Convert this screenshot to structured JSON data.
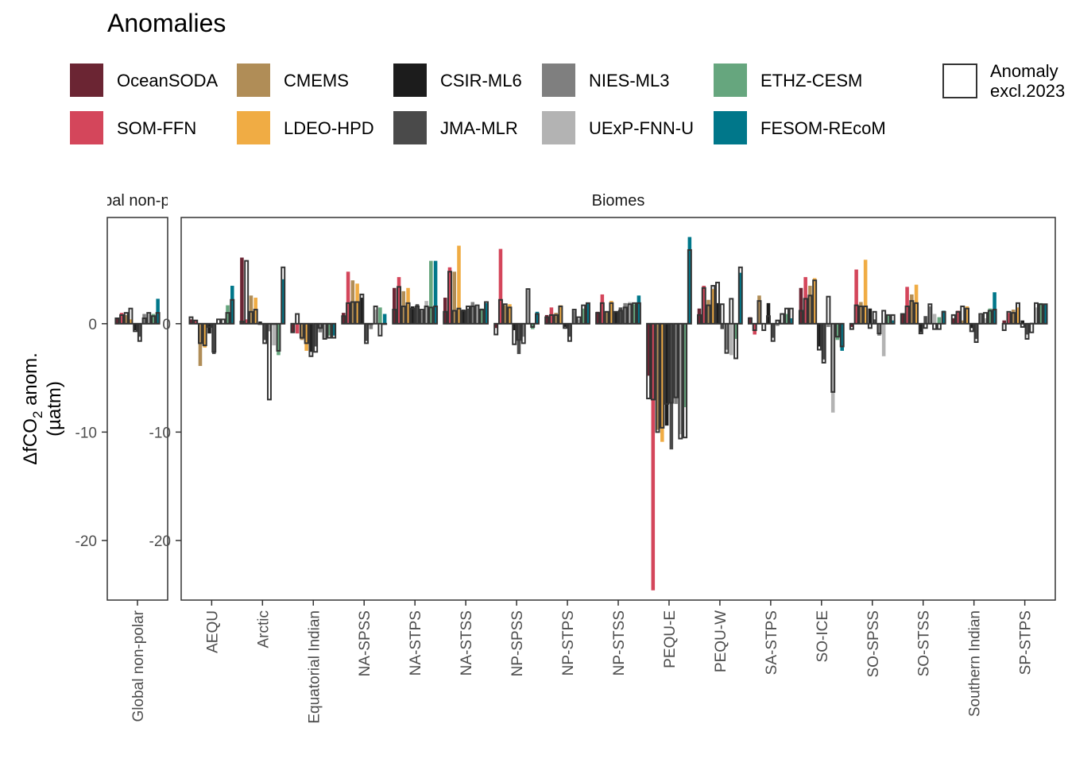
{
  "chart_data": {
    "type": "bar",
    "title": "Anomalies",
    "ylabel": "ΔfCO2 anom. (µatm)",
    "ylabel_line1": "ΔfCO",
    "ylabel_sub": "2",
    "ylabel_line1_suffix": " anom.",
    "ylabel_line2": "(µatm)",
    "ylim": [
      -25.5,
      9.8
    ],
    "yticks": [
      0,
      -10,
      -20
    ],
    "ytick_labels": [
      "0",
      "-10",
      "-20"
    ],
    "legend": {
      "title": "",
      "items": [
        {
          "name": "OceanSODA",
          "color": "#6B2533"
        },
        {
          "name": "SOM-FFN",
          "color": "#D4465B"
        },
        {
          "name": "CMEMS",
          "color": "#B08D57"
        },
        {
          "name": "LDEO-HPD",
          "color": "#F0AC44"
        },
        {
          "name": "CSIR-ML6",
          "color": "#1C1C1C"
        },
        {
          "name": "JMA-MLR",
          "color": "#4A4A4A"
        },
        {
          "name": "NIES-ML3",
          "color": "#7F7F7F"
        },
        {
          "name": "UExP-FNN-U",
          "color": "#B3B3B3"
        },
        {
          "name": "ETHZ-CESM",
          "color": "#66A67E"
        },
        {
          "name": "FESOM-REcoM",
          "color": "#00778A"
        }
      ],
      "outline_item": {
        "line1": "Anomaly",
        "line2": "excl.2023"
      }
    },
    "panels": [
      {
        "strip": "Global non-polar",
        "categories": [
          "Global non-polar"
        ],
        "values": [
          [
            0.5,
            1.0,
            0.8,
            0.4,
            -0.6,
            -1.2,
            0.9,
            0.9,
            0.9,
            2.3
          ]
        ],
        "excl": [
          [
            0.5,
            0.8,
            1.0,
            1.4,
            -0.7,
            -1.6,
            0.5,
            1.0,
            0.7,
            1.0
          ]
        ]
      },
      {
        "strip": "Biomes",
        "categories": [
          "AEQU",
          "Arctic",
          "Equatorial Indian",
          "NA-SPSS",
          "NA-STPS",
          "NA-STSS",
          "NP-SPSS",
          "NP-STPS",
          "NP-STSS",
          "PEQU-E",
          "PEQU-W",
          "SA-STPS",
          "SO-ICE",
          "SO-SPSS",
          "SO-STSS",
          "Southern Indian",
          "SP-STPS"
        ],
        "values": [
          [
            0.4,
            0.3,
            -3.9,
            -2.2,
            -0.9,
            -2.8,
            0.0,
            0.0,
            1.7,
            3.5
          ],
          [
            6.1,
            0.4,
            2.6,
            2.4,
            0.2,
            -1.5,
            -0.7,
            -2.0,
            -2.9,
            4.1
          ],
          [
            -0.8,
            -0.9,
            -1.5,
            -2.5,
            -2.6,
            -2.1,
            -0.8,
            -1.4,
            -1.1,
            -1.1
          ],
          [
            1.0,
            4.8,
            4.0,
            3.7,
            2.4,
            -1.6,
            -0.5,
            1.3,
            1.5,
            0.9
          ],
          [
            3.3,
            4.3,
            3.0,
            3.3,
            1.6,
            1.8,
            1.2,
            2.1,
            5.8,
            5.8
          ],
          [
            2.4,
            5.2,
            4.8,
            7.2,
            1.3,
            1.4,
            2.0,
            1.6,
            1.4,
            1.9
          ],
          [
            -0.4,
            6.9,
            1.7,
            1.8,
            -0.6,
            -2.8,
            -1.2,
            3.1,
            -0.5,
            1.1
          ],
          [
            0.8,
            1.5,
            1.0,
            1.7,
            -0.3,
            -1.2,
            1.2,
            0.4,
            1.4,
            1.9
          ],
          [
            1.1,
            2.7,
            1.1,
            2.1,
            1.1,
            1.5,
            1.9,
            2.0,
            1.8,
            2.6
          ],
          [
            -4.8,
            -24.6,
            -9.8,
            -10.9,
            -9.4,
            -11.6,
            -7.4,
            -10.2,
            -7.7,
            8.0
          ],
          [
            1.4,
            3.5,
            2.2,
            3.2,
            1.9,
            -0.5,
            -2.4,
            -2.9,
            -1.4,
            4.7
          ],
          [
            0.6,
            -1.0,
            2.6,
            0.0,
            1.9,
            -1.3,
            -0.2,
            0.1,
            0.9,
            0.5
          ],
          [
            3.3,
            4.3,
            3.5,
            4.2,
            -2.1,
            -3.3,
            -0.3,
            -8.2,
            -1.5,
            -2.5
          ],
          [
            -0.3,
            5.0,
            2.0,
            5.9,
            1.4,
            0.4,
            -1.1,
            -3.0,
            0.8,
            0.3
          ],
          [
            0.9,
            3.4,
            2.7,
            3.6,
            -0.8,
            0.7,
            1.6,
            0.9,
            0.6,
            1.2
          ],
          [
            0.5,
            1.2,
            0.3,
            1.6,
            -0.4,
            -1.4,
            0.8,
            0.5,
            1.4,
            2.9
          ],
          [
            0.3,
            1.0,
            1.3,
            1.5,
            0.3,
            -1.0,
            0.1,
            1.5,
            1.9,
            1.8
          ]
        ],
        "excl": [
          [
            0.6,
            0.3,
            -1.8,
            -2.0,
            -0.3,
            -2.6,
            0.4,
            0.4,
            1.0,
            2.2
          ],
          [
            0.2,
            5.8,
            1.1,
            1.3,
            0.0,
            -1.8,
            -7.0,
            0.0,
            -2.5,
            5.2
          ],
          [
            -0.8,
            0.9,
            -1.3,
            -1.8,
            -3.0,
            -2.6,
            -0.4,
            -1.4,
            -1.3,
            -1.3
          ],
          [
            0.7,
            1.9,
            2.0,
            2.0,
            2.7,
            -1.8,
            0.0,
            1.6,
            -1.1,
            0.0
          ],
          [
            1.3,
            3.4,
            1.6,
            1.9,
            1.4,
            1.6,
            1.3,
            1.6,
            1.5,
            1.6
          ],
          [
            1.1,
            4.8,
            1.2,
            1.4,
            1.2,
            1.6,
            1.6,
            1.7,
            1.3,
            2.0
          ],
          [
            -1.0,
            2.2,
            1.8,
            1.5,
            -1.9,
            -1.5,
            -1.8,
            3.2,
            -0.3,
            0.9
          ],
          [
            0.6,
            0.8,
            0.8,
            1.6,
            -0.4,
            -1.6,
            1.3,
            0.6,
            1.7,
            1.9
          ],
          [
            1.0,
            1.9,
            1.1,
            1.9,
            1.1,
            1.2,
            1.5,
            1.8,
            1.9,
            1.9
          ],
          [
            -6.9,
            -7.0,
            -10.0,
            -9.6,
            -7.4,
            -7.3,
            -6.8,
            -10.6,
            -10.5,
            6.8
          ],
          [
            0.8,
            3.3,
            1.7,
            3.5,
            3.8,
            1.8,
            -2.7,
            2.3,
            -3.2,
            5.2
          ],
          [
            0.5,
            -0.6,
            2.1,
            -0.6,
            0.7,
            -1.6,
            0.3,
            0.9,
            1.4,
            1.4
          ],
          [
            1.2,
            2.3,
            2.6,
            4.0,
            -2.4,
            -3.6,
            2.5,
            -6.3,
            -1.2,
            -2.1
          ],
          [
            -0.5,
            1.7,
            1.6,
            1.6,
            -0.4,
            1.1,
            -0.9,
            1.2,
            0.8,
            0.8
          ],
          [
            0.9,
            1.6,
            2.1,
            1.9,
            -0.9,
            -0.4,
            1.8,
            -0.5,
            -0.5,
            1.1
          ],
          [
            0.8,
            1.1,
            1.6,
            1.4,
            -0.7,
            -1.7,
            0.9,
            1.0,
            1.2,
            1.3
          ],
          [
            -0.6,
            1.1,
            1.0,
            1.9,
            -0.3,
            -1.4,
            -0.8,
            1.9,
            1.8,
            1.8
          ]
        ]
      }
    ]
  }
}
